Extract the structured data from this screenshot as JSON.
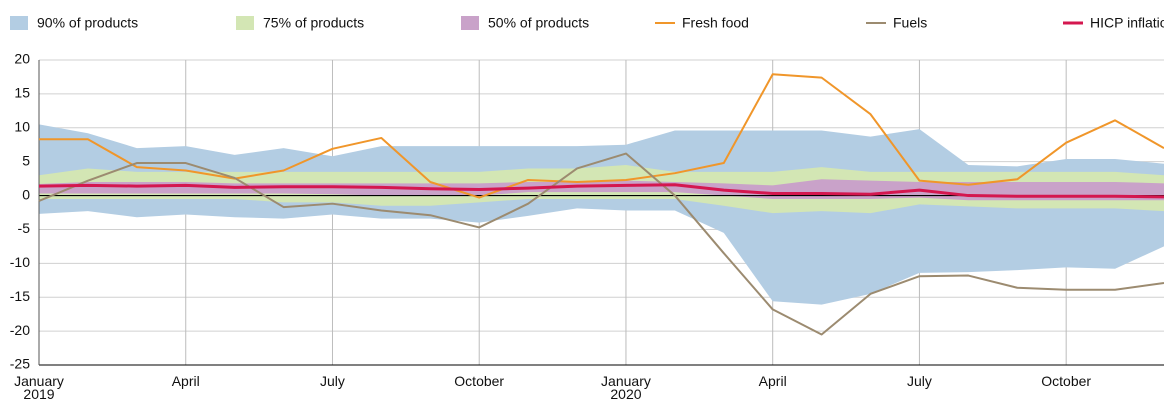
{
  "chart_data": {
    "type": "line",
    "categories": [
      "January 2019",
      null,
      null,
      "April",
      null,
      null,
      "July",
      null,
      null,
      "October",
      null,
      null,
      "January 2020",
      null,
      null,
      "April",
      null,
      null,
      "July",
      null,
      null,
      "October",
      null,
      null
    ],
    "bands": [
      {
        "name": "90% of products",
        "color": "#b3cde3",
        "upper": [
          10.5,
          9.2,
          7.0,
          7.3,
          6.0,
          7.0,
          5.8,
          7.3,
          7.3,
          7.3,
          7.3,
          7.3,
          7.5,
          9.6,
          9.6,
          9.6,
          9.6,
          8.7,
          9.8,
          4.5,
          4.3,
          5.4,
          5.4,
          4.7
        ],
        "lower": [
          -2.7,
          -2.3,
          -3.2,
          -2.8,
          -3.2,
          -3.4,
          -2.8,
          -3.4,
          -3.4,
          -4.0,
          -3.0,
          -1.9,
          -2.2,
          -2.2,
          -5.5,
          -15.6,
          -16.1,
          -14.5,
          -11.4,
          -11.3,
          -11.0,
          -10.6,
          -10.8,
          -7.5
        ]
      },
      {
        "name": "75% of products",
        "color": "#d3e6b4",
        "upper": [
          3.0,
          4.0,
          3.5,
          3.5,
          3.5,
          3.5,
          3.5,
          3.5,
          3.5,
          3.5,
          4.0,
          4.0,
          4.5,
          3.5,
          3.5,
          3.5,
          4.2,
          3.5,
          3.5,
          3.5,
          3.5,
          3.5,
          3.5,
          3.0
        ],
        "lower": [
          -0.5,
          -0.5,
          -0.5,
          -0.5,
          -0.5,
          -1.0,
          -1.0,
          -1.5,
          -1.5,
          -1.0,
          -0.5,
          -0.5,
          -0.5,
          -0.5,
          -1.5,
          -2.6,
          -2.3,
          -2.6,
          -1.3,
          -1.6,
          -1.9,
          -1.9,
          -1.9,
          -2.3
        ]
      },
      {
        "name": "50% of products",
        "color": "#c9a2c9",
        "upper": [
          1.7,
          2.0,
          2.0,
          2.0,
          1.8,
          1.8,
          1.8,
          1.8,
          1.8,
          1.8,
          2.0,
          2.0,
          2.2,
          2.0,
          1.8,
          1.5,
          2.4,
          2.2,
          2.0,
          2.0,
          2.0,
          2.0,
          2.0,
          1.8
        ],
        "lower": [
          0.3,
          0.3,
          0.3,
          0.3,
          0.3,
          0.3,
          0.2,
          0.0,
          0.0,
          0.0,
          0.5,
          0.5,
          0.5,
          0.5,
          0.0,
          -0.5,
          -0.5,
          -0.5,
          -0.3,
          -0.7,
          -0.7,
          -0.7,
          -0.7,
          -0.7
        ]
      }
    ],
    "series": [
      {
        "name": "Fresh food",
        "color": "#f0962a",
        "values": [
          8.3,
          8.3,
          4.2,
          3.7,
          2.5,
          3.7,
          6.9,
          8.5,
          2.0,
          -0.3,
          2.3,
          2.0,
          2.3,
          3.3,
          4.8,
          17.9,
          17.4,
          12.0,
          2.2,
          1.6,
          2.4,
          7.8,
          11.1,
          7.0
        ]
      },
      {
        "name": "Fuels",
        "color": "#9c8b70",
        "values": [
          -0.8,
          2.2,
          4.8,
          4.8,
          2.6,
          -1.7,
          -1.2,
          -2.2,
          -2.9,
          -4.7,
          -1.2,
          4.0,
          6.2,
          0.0,
          -8.5,
          -16.8,
          -20.5,
          -14.5,
          -11.9,
          -11.8,
          -13.6,
          -13.9,
          -13.9,
          -12.9
        ]
      },
      {
        "name": "HICP inflation",
        "color": "#d4174f",
        "values": [
          1.4,
          1.5,
          1.4,
          1.5,
          1.2,
          1.3,
          1.3,
          1.2,
          1.0,
          0.9,
          1.1,
          1.4,
          1.5,
          1.6,
          0.8,
          0.3,
          0.3,
          0.2,
          0.8,
          0.0,
          -0.1,
          -0.1,
          -0.1,
          -0.2
        ]
      }
    ],
    "ylim": [
      -25,
      20
    ],
    "yticks": [
      20,
      15,
      10,
      5,
      0,
      -5,
      -10,
      -15,
      -20,
      -25
    ],
    "grid": true
  }
}
